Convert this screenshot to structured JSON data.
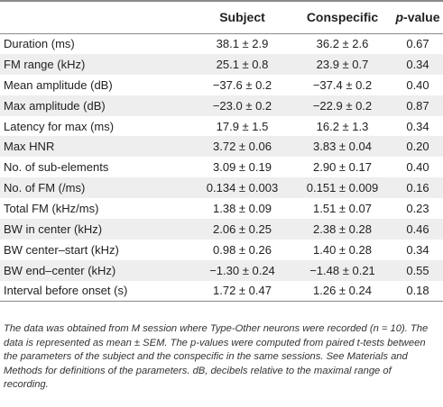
{
  "table": {
    "headers": {
      "parameter": "",
      "subject": "Subject",
      "conspecific": "Conspecific",
      "pvalue_italic": "p",
      "pvalue_rest": "-value"
    },
    "rows": [
      {
        "parameter": "Duration (ms)",
        "subject": "38.1 ± 2.9",
        "conspecific": "36.2 ± 2.6",
        "pvalue": "0.67"
      },
      {
        "parameter": "FM range (kHz)",
        "subject": "25.1 ± 0.8",
        "conspecific": "23.9 ± 0.7",
        "pvalue": "0.34"
      },
      {
        "parameter": "Mean amplitude (dB)",
        "subject": "−37.6 ± 0.2",
        "conspecific": "−37.4 ± 0.2",
        "pvalue": "0.40"
      },
      {
        "parameter": "Max amplitude (dB)",
        "subject": "−23.0 ± 0.2",
        "conspecific": "−22.9 ± 0.2",
        "pvalue": "0.87"
      },
      {
        "parameter": "Latency for max (ms)",
        "subject": "17.9 ± 1.5",
        "conspecific": "16.2 ± 1.3",
        "pvalue": "0.34"
      },
      {
        "parameter": "Max HNR",
        "subject": "3.72 ± 0.06",
        "conspecific": "3.83 ± 0.04",
        "pvalue": "0.20"
      },
      {
        "parameter": "No. of sub-elements",
        "subject": "3.09 ± 0.19",
        "conspecific": "2.90 ± 0.17",
        "pvalue": "0.40"
      },
      {
        "parameter": "No. of FM (/ms)",
        "subject": "0.134 ± 0.003",
        "conspecific": "0.151 ± 0.009",
        "pvalue": "0.16"
      },
      {
        "parameter": "Total FM (kHz/ms)",
        "subject": "1.38 ± 0.09",
        "conspecific": "1.51 ± 0.07",
        "pvalue": "0.23"
      },
      {
        "parameter": "BW in center (kHz)",
        "subject": "2.06 ± 0.25",
        "conspecific": "2.38 ± 0.28",
        "pvalue": "0.46"
      },
      {
        "parameter": "BW center–start (kHz)",
        "subject": "0.98 ± 0.26",
        "conspecific": "1.40 ± 0.28",
        "pvalue": "0.34"
      },
      {
        "parameter": "BW end–center (kHz)",
        "subject": "−1.30 ± 0.24",
        "conspecific": "−1.48 ± 0.21",
        "pvalue": "0.55"
      },
      {
        "parameter": "Interval before onset (s)",
        "subject": "1.72 ± 0.47",
        "conspecific": "1.26 ± 0.24",
        "pvalue": "0.18"
      }
    ]
  },
  "footnote": "The data was obtained from M session where Type-Other neurons were recorded (n = 10). The data is represented as mean ± SEM. The p-values were computed from paired t-tests between the parameters of the subject and the conspecific in the same sessions. See Materials and Methods for definitions of the parameters. dB, decibels relative to the maximal range of recording."
}
